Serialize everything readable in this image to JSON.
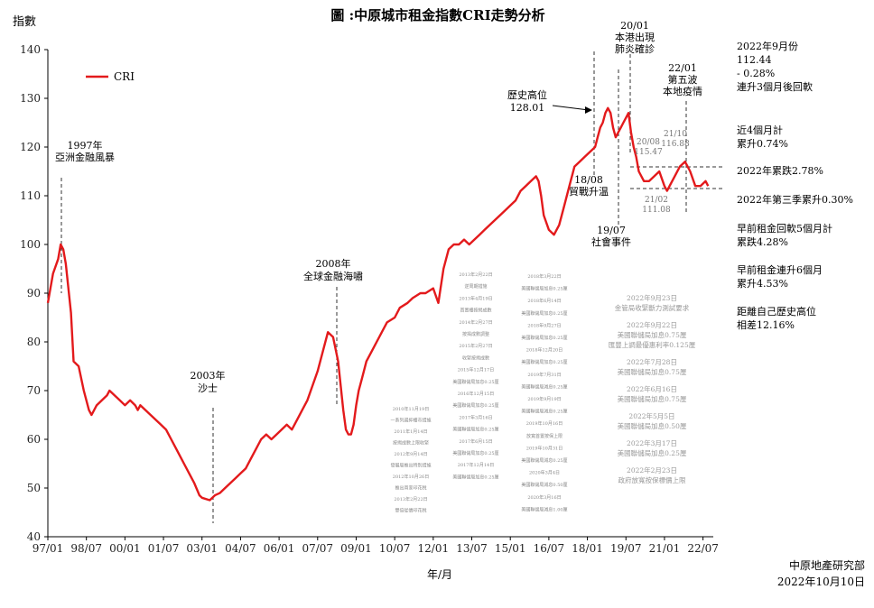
{
  "chart_data": {
    "type": "line",
    "title": "圖 :中原城市租金指數CRI走勢分析",
    "ylabel": "指數",
    "xlabel": "年/月",
    "ylim": [
      40,
      140
    ],
    "yticks": [
      40,
      50,
      60,
      70,
      80,
      90,
      100,
      110,
      120,
      130,
      140
    ],
    "xtick_labels": [
      "97/01",
      "98/07",
      "00/01",
      "01/07",
      "03/01",
      "04/07",
      "06/01",
      "07/07",
      "09/01",
      "10/07",
      "12/01",
      "13/07",
      "15/01",
      "16/07",
      "18/01",
      "19/07",
      "21/01",
      "22/07"
    ],
    "x_start": 1997.0,
    "legend": "CRI",
    "series": [
      {
        "name": "CRI",
        "color": "#e31a1c",
        "x": [
          1997.0,
          1997.2,
          1997.4,
          1997.5,
          1997.6,
          1997.7,
          1997.9,
          1998.0,
          1998.2,
          1998.4,
          1998.6,
          1998.7,
          1998.9,
          1999.1,
          1999.3,
          1999.4,
          1999.6,
          1999.8,
          2000.0,
          2000.2,
          2000.4,
          2000.5,
          2000.6,
          2000.8,
          2001.0,
          2001.2,
          2001.4,
          2001.6,
          2001.8,
          2002.0,
          2002.3,
          2002.5,
          2002.7,
          2002.9,
          2003.0,
          2003.3,
          2003.5,
          2003.7,
          2003.9,
          2004.1,
          2004.3,
          2004.5,
          2004.7,
          2004.9,
          2005.1,
          2005.3,
          2005.5,
          2005.7,
          2005.9,
          2006.1,
          2006.3,
          2006.5,
          2006.7,
          2006.9,
          2007.1,
          2007.3,
          2007.5,
          2007.7,
          2007.9,
          2008.1,
          2008.3,
          2008.5,
          2008.6,
          2008.7,
          2008.8,
          2008.9,
          2009.0,
          2009.1,
          2009.2,
          2009.3,
          2009.4,
          2009.6,
          2009.8,
          2010.0,
          2010.2,
          2010.5,
          2010.7,
          2011.0,
          2011.2,
          2011.5,
          2011.7,
          2012.0,
          2012.2,
          2012.4,
          2012.6,
          2012.8,
          2013.0,
          2013.2,
          2013.4,
          2013.6,
          2013.8,
          2014.0,
          2014.2,
          2014.4,
          2014.6,
          2014.8,
          2015.0,
          2015.2,
          2015.4,
          2015.6,
          2015.8,
          2016.0,
          2016.1,
          2016.2,
          2016.3,
          2016.5,
          2016.7,
          2016.9,
          2017.1,
          2017.3,
          2017.5,
          2017.7,
          2017.9,
          2018.1,
          2018.3,
          2018.4,
          2018.5,
          2018.6,
          2018.7,
          2018.8,
          2018.9,
          2019.0,
          2019.1,
          2019.2,
          2019.3,
          2019.4,
          2019.5,
          2019.6,
          2019.7,
          2019.8,
          2019.9,
          2020.0,
          2020.2,
          2020.4,
          2020.6,
          2020.8,
          2021.0,
          2021.1,
          2021.2,
          2021.4,
          2021.6,
          2021.8,
          2022.0,
          2022.2,
          2022.4,
          2022.6,
          2022.7
        ],
        "values": [
          88,
          94,
          97,
          100,
          99,
          96,
          86,
          76,
          75,
          70,
          66,
          65,
          67,
          68,
          69,
          70,
          69,
          68,
          67,
          68,
          67,
          66,
          67,
          66,
          65,
          64,
          63,
          62,
          60,
          58,
          55,
          53,
          51,
          48.5,
          48,
          47.5,
          48.5,
          49,
          50,
          51,
          52,
          53,
          54,
          56,
          58,
          60,
          61,
          60,
          61,
          62,
          63,
          62,
          64,
          66,
          68,
          71,
          74,
          78,
          82,
          81,
          76,
          66,
          62,
          61,
          61,
          63,
          67,
          70,
          72,
          74,
          76,
          78,
          80,
          82,
          84,
          85,
          87,
          88,
          89,
          90,
          90,
          91,
          88,
          95,
          99,
          100,
          100,
          101,
          100,
          101,
          102,
          103,
          104,
          105,
          106,
          107,
          108,
          109,
          111,
          112,
          113,
          114,
          113,
          110,
          106,
          103,
          102,
          104,
          108,
          112,
          116,
          117,
          118,
          119,
          120,
          122,
          124,
          125,
          127,
          128,
          127,
          124,
          122,
          123,
          124,
          125,
          126,
          127,
          123,
          120,
          118,
          115,
          113,
          113,
          114,
          115,
          112,
          111,
          112,
          114,
          116,
          117,
          115,
          112,
          112,
          113,
          112
        ]
      }
    ]
  },
  "annotations": {
    "afc_date": "1997年",
    "afc_event": "亞洲金融風暴",
    "sars_date": "2003年",
    "sars_event": "沙士",
    "gfc_date": "2008年",
    "gfc_event": "全球金融海嘯",
    "peak_title": "歷史高位",
    "peak_value": "128.01",
    "trade_date": "18/08",
    "trade_event": "貿戰升温",
    "covid_date": "20/01",
    "covid_line1": "本港出現",
    "covid_line2": "肺炎確診",
    "social_date": "19/07",
    "social_event": "社會事件",
    "wave5_date": "22/01",
    "wave5_line1": "第五波",
    "wave5_line2": "本地疫情",
    "p2008_date": "20/08",
    "p2008_val": "115.47",
    "p2110_date": "21/10",
    "p2110_val": "116.88",
    "p2102_date": "21/02",
    "p2102_val": "111.08"
  },
  "side_notes": [
    "2022年9月份\n112.44\n- 0.28%\n連升3個月後回軟",
    "近4個月計\n累升0.74%",
    "2022年累跌2.78%",
    "2022年第三季累升0.30%",
    "早前租金回軟5個月計\n累跌4.28%",
    "早前租金連升6個月\n累升4.53%",
    "距離自己歷史高位\n相差12.16%"
  ],
  "rate_hikes": [
    {
      "date": "2022年9月23日",
      "text": "金管局收緊斷力測試要求"
    },
    {
      "date": "2022年9月22日",
      "text": "美國聯儲局加息0.75厘\n匯豐上調最優惠利率0.125厘"
    },
    {
      "date": "2022年7月28日",
      "text": "美國聯儲局加息0.75厘"
    },
    {
      "date": "2022年6月16日",
      "text": "美國聯儲局加息0.75厘"
    },
    {
      "date": "2022年5月5日",
      "text": "美國聯儲局加息0.50厘"
    },
    {
      "date": "2022年3月17日",
      "text": "美國聯儲局加息0.25厘"
    },
    {
      "date": "2022年2月23日",
      "text": "政府放寬按保標價上限"
    }
  ],
  "policy_col1": [
    "2010年11月19日",
    "一系列遏抑樓市措施",
    "2011年1月14日",
    "按揭成數上限收緊",
    "2012年9月14日",
    "發展局推出特別措施",
    "2012年10月26日",
    "推出買家印花稅",
    "2013年2月22日",
    "雙倍從價印花稅"
  ],
  "policy_col2": [
    "2013年2月22日",
    "逆周期措施",
    "2013年4月19日",
    "首置樓按揭成數",
    "2014年2月27日",
    "按揭成數調整",
    "2015年2月27日",
    "收緊按揭成數",
    "2015年12月17日",
    "美國聯儲局加息0.25厘",
    "2016年12月15日",
    "美國聯儲局加息0.25厘",
    "2017年3月16日",
    "美國聯儲局加息0.25厘",
    "2017年6月15日",
    "美國聯儲局加息0.25厘",
    "2017年12月14日",
    "美國聯儲局加息0.25厘"
  ],
  "policy_col3": [
    "2018年3月22日",
    "美國聯儲局加息0.25厘",
    "2018年6月14日",
    "美國聯儲局加息0.25厘",
    "2018年9月27日",
    "美國聯儲局加息0.25厘",
    "2018年12月20日",
    "美國聯儲局加息0.25厘",
    "2019年7月31日",
    "美國聯儲局減息0.25厘",
    "2019年9月19日",
    "美國聯儲局減息0.25厘",
    "2019年10月16日",
    "放寬首置按保上限",
    "2019年10月31日",
    "美國聯儲局減息0.25厘",
    "2020年3月4日",
    "美國聯儲局減息0.50厘",
    "2020年3月16日",
    "美國聯儲局減息1.00厘"
  ],
  "footer": {
    "source": "中原地產研究部",
    "date": "2022年10月10日"
  }
}
